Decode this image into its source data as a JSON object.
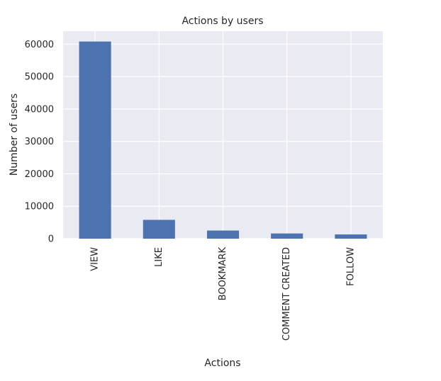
{
  "chart_data": {
    "type": "bar",
    "title": "Actions by users",
    "xlabel": "Actions",
    "ylabel": "Number of users",
    "categories": [
      "VIEW",
      "LIKE",
      "BOOKMARK",
      "COMMENT CREATED",
      "FOLLOW"
    ],
    "values": [
      60800,
      5800,
      2500,
      1600,
      1300
    ],
    "ylim": [
      0,
      64000
    ],
    "yticks": [
      0,
      10000,
      20000,
      30000,
      40000,
      50000,
      60000
    ],
    "grid": true,
    "legend": "none",
    "bar_color": "#4c72b0",
    "plot_background": "#eaeaf2",
    "grid_color": "#ffffff"
  }
}
